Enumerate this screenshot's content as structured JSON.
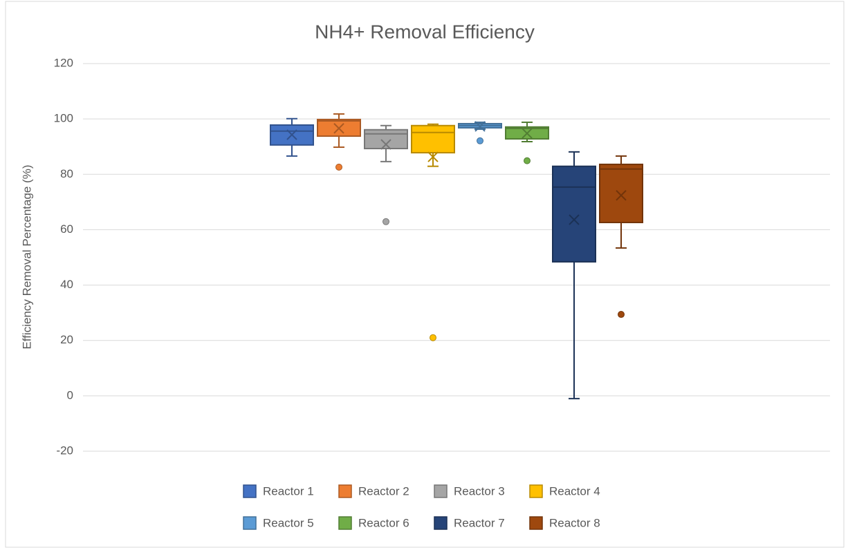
{
  "chart_data": {
    "type": "box",
    "title": "NH4+ Removal Efficiency",
    "y_label": "Efficiency Removal Percentage (%)",
    "ylim": [
      -20,
      120
    ],
    "yticks": [
      -20,
      0,
      20,
      40,
      60,
      80,
      100,
      120
    ],
    "grid": true,
    "legend": "bottom",
    "series": [
      {
        "name": "Reactor 1",
        "color": "#4472c4",
        "min": 86.6,
        "q1": 90.6,
        "median": 95.6,
        "q3": 97.8,
        "max": 100.1,
        "mean": 94.3,
        "outliers": []
      },
      {
        "name": "Reactor 2",
        "color": "#ed7d31",
        "min": 89.8,
        "q1": 93.8,
        "median": 99.3,
        "q3": 99.8,
        "max": 101.8,
        "mean": 96.6,
        "outliers": [
          82.6
        ]
      },
      {
        "name": "Reactor 3",
        "color": "#a5a5a5",
        "min": 84.6,
        "q1": 89.3,
        "median": 94.6,
        "q3": 96.1,
        "max": 97.6,
        "mean": 90.8,
        "outliers": [
          62.9
        ]
      },
      {
        "name": "Reactor 4",
        "color": "#ffc000",
        "min": 82.9,
        "q1": 87.8,
        "median": 95.1,
        "q3": 97.6,
        "max": 98.1,
        "mean": 86.3,
        "outliers": [
          21.0
        ]
      },
      {
        "name": "Reactor 5",
        "color": "#5b9bd5",
        "min": 96.3,
        "q1": 96.8,
        "median": 97.6,
        "q3": 98.3,
        "max": 98.8,
        "mean": 97.3,
        "outliers": [
          92.1
        ]
      },
      {
        "name": "Reactor 6",
        "color": "#70ad47",
        "min": 91.8,
        "q1": 92.8,
        "median": 96.6,
        "q3": 97.1,
        "max": 98.8,
        "mean": 94.8,
        "outliers": [
          84.9
        ]
      },
      {
        "name": "Reactor 7",
        "color": "#264478",
        "min": -1.0,
        "q1": 48.4,
        "median": 75.4,
        "q3": 82.9,
        "max": 88.1,
        "mean": 63.6,
        "outliers": []
      },
      {
        "name": "Reactor 8",
        "color": "#9e480e",
        "min": 53.4,
        "q1": 62.6,
        "median": 81.9,
        "q3": 83.6,
        "max": 86.6,
        "mean": 72.4,
        "outliers": [
          29.4
        ]
      }
    ]
  }
}
